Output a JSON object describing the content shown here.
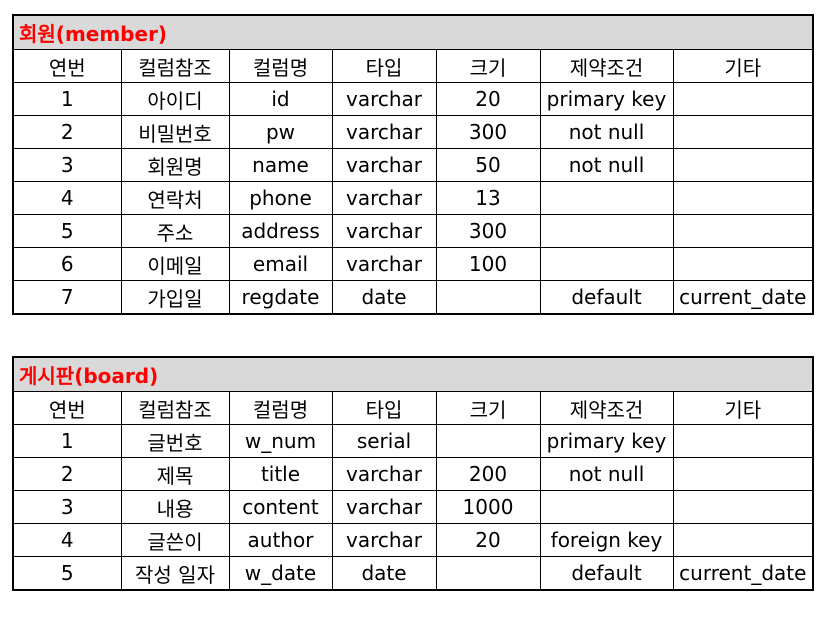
{
  "columns": [
    "연번",
    "컬럼참조",
    "컬럼명",
    "타입",
    "크기",
    "제약조건",
    "기타"
  ],
  "member": {
    "title": "회원(member)",
    "rows": [
      [
        "1",
        "아이디",
        "id",
        "varchar",
        "20",
        "primary key",
        ""
      ],
      [
        "2",
        "비밀번호",
        "pw",
        "varchar",
        "300",
        "not null",
        ""
      ],
      [
        "3",
        "회원명",
        "name",
        "varchar",
        "50",
        "not null",
        ""
      ],
      [
        "4",
        "연락처",
        "phone",
        "varchar",
        "13",
        "",
        ""
      ],
      [
        "5",
        "주소",
        "address",
        "varchar",
        "300",
        "",
        ""
      ],
      [
        "6",
        "이메일",
        "email",
        "varchar",
        "100",
        "",
        ""
      ],
      [
        "7",
        "가입일",
        "regdate",
        "date",
        "",
        "default",
        "current_date"
      ]
    ]
  },
  "board": {
    "title": "게시판(board)",
    "rows": [
      [
        "1",
        "글번호",
        "w_num",
        "serial",
        "",
        "primary key",
        ""
      ],
      [
        "2",
        "제목",
        "title",
        "varchar",
        "200",
        "not null",
        ""
      ],
      [
        "3",
        "내용",
        "content",
        "varchar",
        "1000",
        "",
        ""
      ],
      [
        "4",
        "글쓴이",
        "author",
        "varchar",
        "20",
        "foreign key",
        ""
      ],
      [
        "5",
        "작성 일자",
        "w_date",
        "date",
        "",
        "default",
        "current_date"
      ]
    ]
  }
}
